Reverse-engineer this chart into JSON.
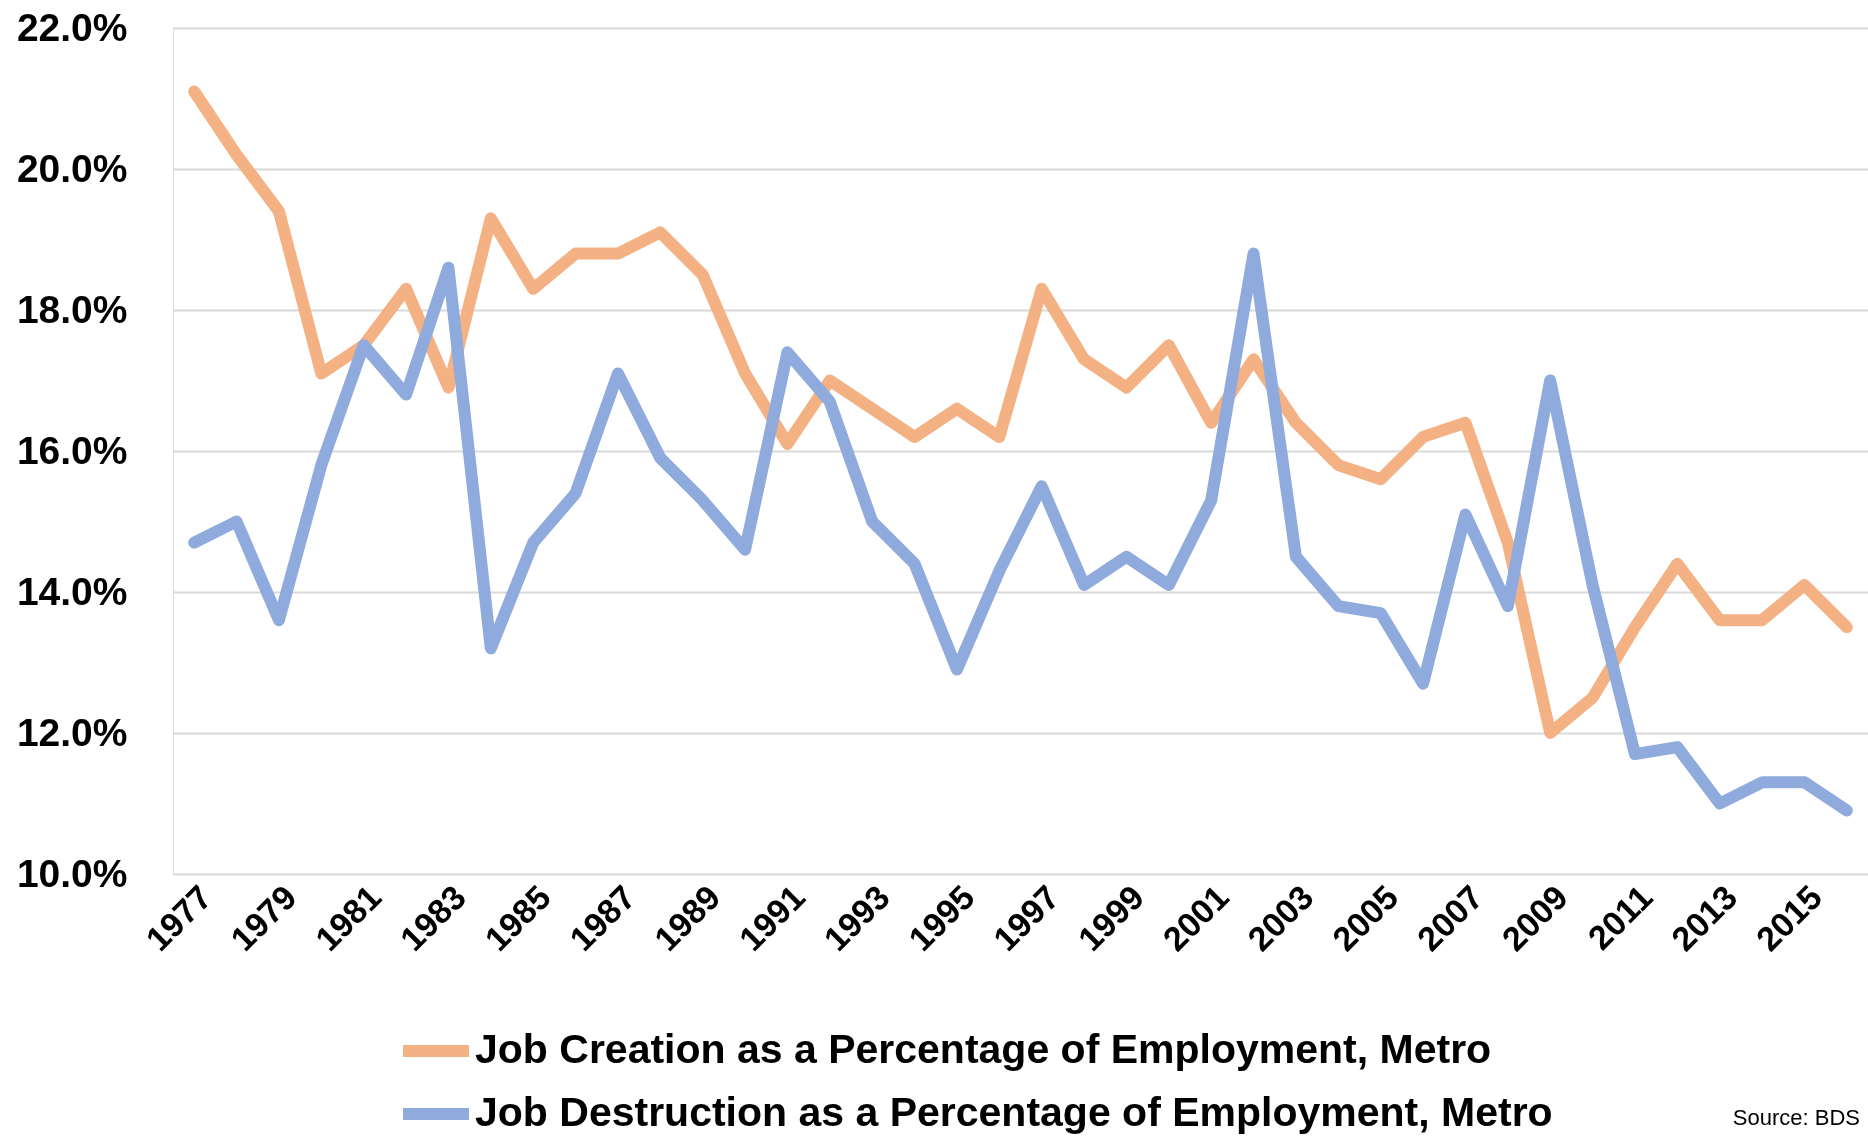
{
  "chart_data": {
    "type": "line",
    "categories": [
      "1977",
      null,
      "1979",
      null,
      "1981",
      null,
      "1983",
      null,
      "1985",
      null,
      "1987",
      null,
      "1989",
      null,
      "1991",
      null,
      "1993",
      null,
      "1995",
      null,
      "1997",
      null,
      "1999",
      null,
      "2001",
      null,
      "2003",
      null,
      "2005",
      null,
      "2007",
      null,
      "2009",
      null,
      "2011",
      null,
      "2013",
      null,
      "2015",
      null
    ],
    "series": [
      {
        "name": "Job Creation as a Percentage of Employment, Metro",
        "color": "#f4b183",
        "values": [
          21.1,
          20.2,
          19.4,
          17.1,
          17.5,
          18.3,
          16.9,
          19.3,
          18.3,
          18.8,
          18.8,
          19.1,
          18.5,
          17.1,
          16.1,
          17.0,
          16.6,
          16.2,
          16.6,
          16.2,
          18.3,
          17.3,
          16.9,
          17.5,
          16.4,
          17.3,
          16.4,
          15.8,
          15.6,
          16.2,
          16.4,
          14.7,
          12.0,
          12.5,
          13.5,
          14.4,
          13.6,
          13.6,
          14.1,
          13.5
        ]
      },
      {
        "name": "Job Destruction as a Percentage of Employment, Metro",
        "color": "#8faadc",
        "values": [
          14.7,
          15.0,
          13.6,
          15.8,
          17.5,
          16.8,
          18.6,
          13.2,
          14.7,
          15.4,
          17.1,
          15.9,
          15.3,
          14.6,
          17.4,
          16.7,
          15.0,
          14.4,
          12.9,
          14.3,
          15.5,
          14.1,
          14.5,
          14.1,
          15.3,
          18.8,
          14.5,
          13.8,
          13.7,
          12.7,
          15.1,
          13.8,
          17.0,
          14.1,
          11.7,
          11.8,
          11.0,
          11.3,
          11.3,
          10.9
        ]
      }
    ],
    "ylim": [
      10,
      22
    ],
    "yticks": [
      {
        "value": 10,
        "label": "10.0%"
      },
      {
        "value": 12,
        "label": "12.0%"
      },
      {
        "value": 14,
        "label": "14.0%"
      },
      {
        "value": 16,
        "label": "16.0%"
      },
      {
        "value": 18,
        "label": "18.0%"
      },
      {
        "value": 20,
        "label": "20.0%"
      },
      {
        "value": 22,
        "label": "22.0%"
      }
    ],
    "grid": "y",
    "legend": "bottom",
    "line_style": "solid",
    "annotations": [
      "Source: BDS"
    ]
  }
}
